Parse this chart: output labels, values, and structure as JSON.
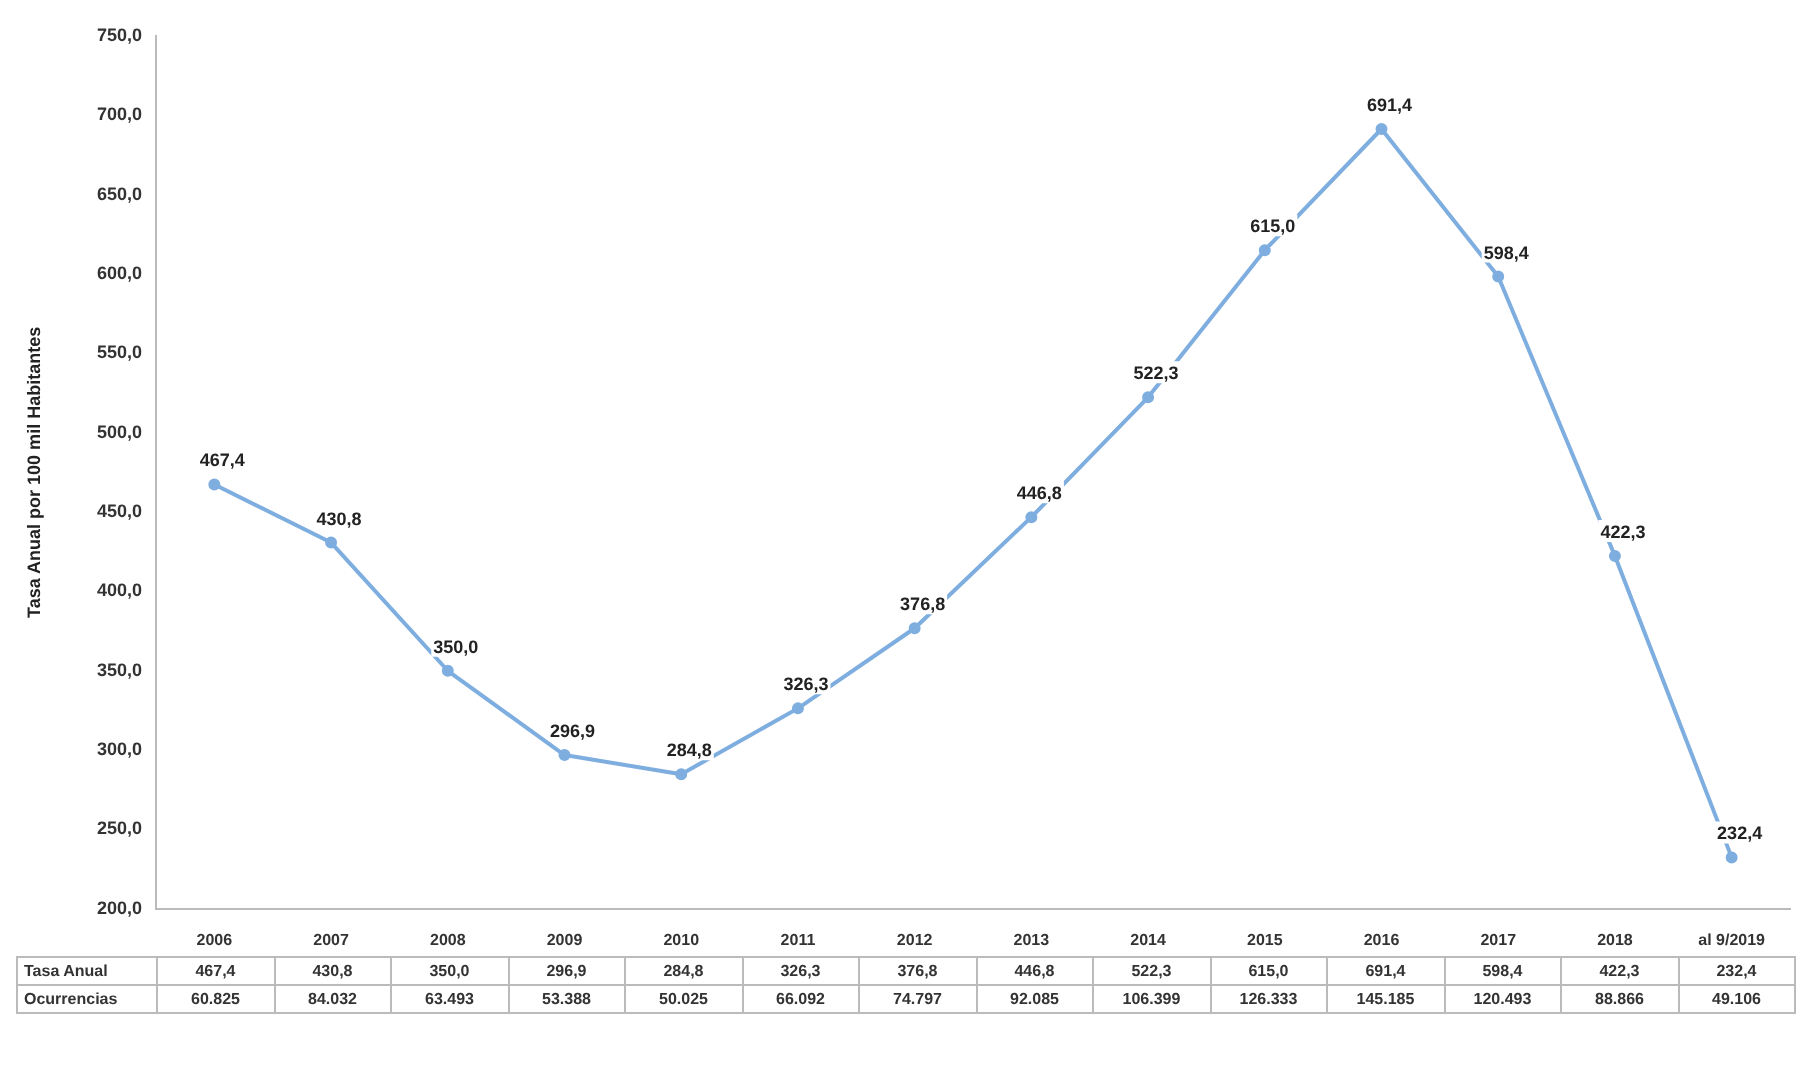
{
  "chart_data": {
    "type": "line",
    "ylabel": "Tasa Anual por 100 mil Habitantes",
    "categories": [
      "2006",
      "2007",
      "2008",
      "2009",
      "2010",
      "2011",
      "2012",
      "2013",
      "2014",
      "2015",
      "2016",
      "2017",
      "2018",
      "al 9/2019"
    ],
    "series": [
      {
        "name": "Tasa Anual",
        "color": "#7eaedf",
        "values": [
          467.4,
          430.8,
          350.0,
          296.9,
          284.8,
          326.3,
          376.8,
          446.8,
          522.3,
          615.0,
          691.4,
          598.4,
          422.3,
          232.4
        ],
        "value_labels": [
          "467,4",
          "430,8",
          "350,0",
          "296,9",
          "284,8",
          "326,3",
          "376,8",
          "446,8",
          "522,3",
          "615,0",
          "691,4",
          "598,4",
          "422,3",
          "232,4"
        ]
      }
    ],
    "ylim": [
      200,
      750
    ],
    "yticks": [
      {
        "value": 200,
        "label": "200,0"
      },
      {
        "value": 250,
        "label": "250,0"
      },
      {
        "value": 300,
        "label": "300,0"
      },
      {
        "value": 350,
        "label": "350,0"
      },
      {
        "value": 400,
        "label": "400,0"
      },
      {
        "value": 450,
        "label": "450,0"
      },
      {
        "value": 500,
        "label": "500,0"
      },
      {
        "value": 550,
        "label": "550,0"
      },
      {
        "value": 600,
        "label": "600,0"
      },
      {
        "value": 650,
        "label": "650,0"
      },
      {
        "value": 700,
        "label": "700,0"
      },
      {
        "value": 750,
        "label": "750,0"
      }
    ],
    "marker": "circle",
    "annotations": [
      "Ocurrencias",
      "60.825",
      "84.032",
      "63.493",
      "53.388",
      "50.025",
      "66.092",
      "74.797",
      "92.085",
      "106.399",
      "126.333",
      "145.185",
      "120.493",
      "88.866",
      "49.106"
    ]
  }
}
